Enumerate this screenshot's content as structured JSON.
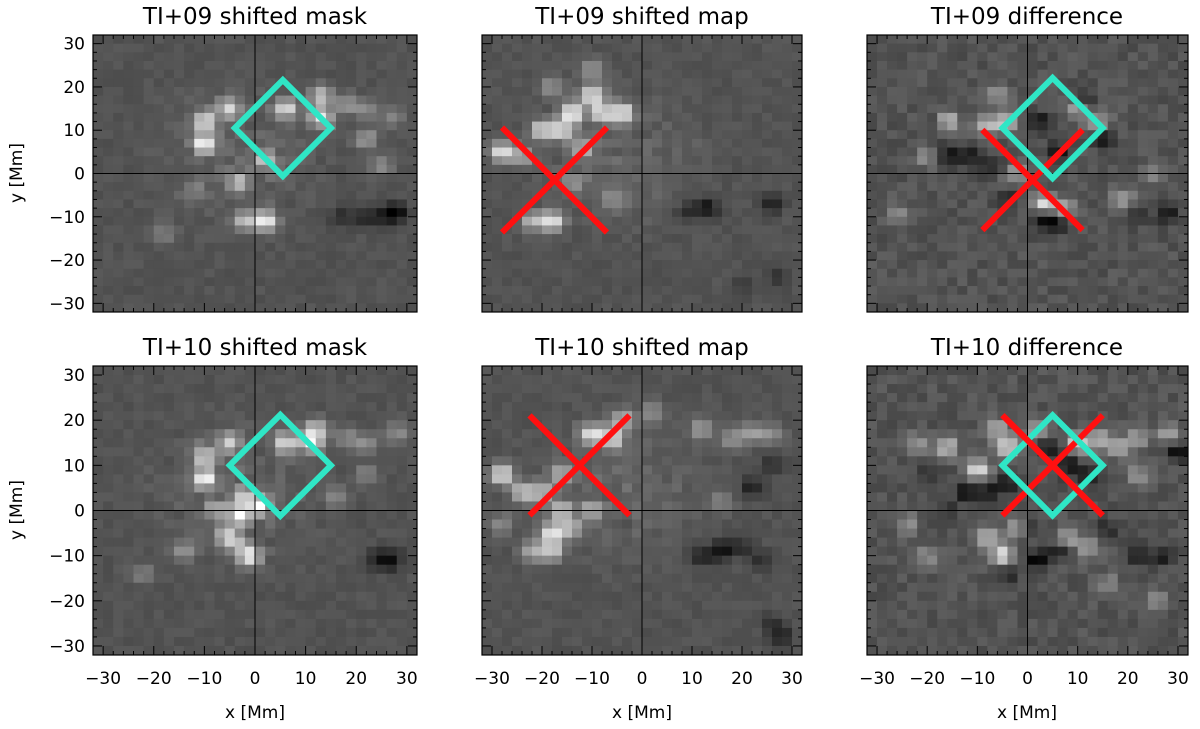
{
  "colors": {
    "diamond": "#2fe6c6",
    "cross": "#ff1010",
    "axis": "#000000",
    "background": "#ffffff"
  },
  "axes": {
    "xlabel": "x [Mm]",
    "ylabel": "y [Mm]",
    "xlim": [
      -32,
      32
    ],
    "ylim": [
      -32,
      32
    ],
    "xticks": [
      "−30",
      "−20",
      "−10",
      "0",
      "10",
      "20",
      "30"
    ],
    "yticks": [
      "30",
      "20",
      "10",
      "0",
      "−10",
      "−20",
      "−30"
    ]
  },
  "chart_data": [
    {
      "type": "heatmap",
      "panel": "mask",
      "title": "TI+09 shifted mask",
      "xlabel": "",
      "ylabel": "y [Mm]",
      "xlim": [
        -32,
        32
      ],
      "ylim": [
        -32,
        32
      ],
      "crosshair": [
        0,
        0
      ],
      "diamond": {
        "center": [
          5.5,
          10.5
        ],
        "half_width": 9.5
      },
      "cross": null,
      "bright_spots": [
        [
          -10,
          7,
          0.95
        ],
        [
          -10,
          12,
          0.8
        ],
        [
          -5,
          15,
          0.75
        ],
        [
          6,
          15,
          0.8
        ],
        [
          13,
          13,
          0.85
        ],
        [
          13,
          18,
          0.7
        ],
        [
          -3,
          -2,
          0.55
        ],
        [
          2,
          3,
          0.55
        ],
        [
          2,
          -11,
          0.95
        ],
        [
          -2,
          -11,
          0.6
        ],
        [
          -12,
          -4,
          0.3
        ],
        [
          -18,
          -14,
          0.3
        ],
        [
          18,
          16,
          0.4
        ],
        [
          22,
          15,
          0.35
        ],
        [
          22,
          8,
          0.45
        ],
        [
          25,
          2,
          0.35
        ],
        [
          27,
          13,
          0.3
        ]
      ],
      "dark_spots": [
        [
          28,
          -9,
          0.8
        ],
        [
          26,
          -10,
          0.6
        ],
        [
          22,
          -10,
          0.6
        ],
        [
          17,
          -10,
          0.5
        ]
      ]
    },
    {
      "type": "heatmap",
      "panel": "map",
      "title": "TI+09 shifted map",
      "xlabel": "",
      "ylabel": "",
      "xlim": [
        -32,
        32
      ],
      "ylim": [
        -32,
        32
      ],
      "crosshair": [
        0,
        0
      ],
      "diamond": null,
      "cross": {
        "center": [
          -17.5,
          -1.5
        ],
        "half_width": 10.5
      },
      "bright_spots": [
        [
          -28,
          5,
          0.9
        ],
        [
          -24,
          4,
          0.55
        ],
        [
          -20,
          10,
          0.8
        ],
        [
          -16,
          10,
          0.8
        ],
        [
          -14,
          14,
          0.95
        ],
        [
          -10,
          18,
          0.85
        ],
        [
          -8,
          14,
          0.8
        ],
        [
          -4,
          14,
          0.85
        ],
        [
          -12,
          6,
          0.55
        ],
        [
          -14,
          -2,
          0.45
        ],
        [
          -18,
          -11,
          0.9
        ],
        [
          -22,
          -11,
          0.6
        ],
        [
          -6,
          -6,
          0.35
        ],
        [
          -10,
          24,
          0.4
        ],
        [
          -18,
          20,
          0.4
        ]
      ],
      "dark_spots": [
        [
          13,
          -8,
          0.8
        ],
        [
          9,
          -9,
          0.45
        ],
        [
          26,
          -7,
          0.6
        ],
        [
          27,
          -24,
          0.45
        ],
        [
          20,
          -26,
          0.3
        ]
      ]
    },
    {
      "type": "heatmap",
      "panel": "difference",
      "title": "TI+09 difference",
      "xlabel": "",
      "ylabel": "",
      "xlim": [
        -32,
        32
      ],
      "ylim": [
        -32,
        32
      ],
      "crosshair": [
        0,
        0
      ],
      "diamond": {
        "center": [
          5,
          10.5
        ],
        "half_width": 10
      },
      "cross": {
        "center": [
          1,
          -1.5
        ],
        "half_width": 10
      },
      "bright_spots": [
        [
          -16,
          12,
          0.75
        ],
        [
          -8,
          11,
          0.6
        ],
        [
          -4,
          12,
          0.75
        ],
        [
          -2,
          0,
          0.45
        ],
        [
          3,
          -7,
          0.8
        ],
        [
          7,
          -8,
          0.6
        ],
        [
          10,
          15,
          0.55
        ],
        [
          14,
          12,
          0.5
        ],
        [
          -20,
          4,
          0.4
        ],
        [
          19,
          -6,
          0.45
        ],
        [
          -26,
          -9,
          0.3
        ],
        [
          25,
          0,
          0.35
        ],
        [
          -6,
          18,
          0.45
        ]
      ],
      "dark_spots": [
        [
          -16,
          4,
          0.8
        ],
        [
          -12,
          4,
          0.7
        ],
        [
          -8,
          2,
          0.6
        ],
        [
          2,
          12,
          0.8
        ],
        [
          6,
          5,
          0.8
        ],
        [
          15,
          8,
          0.7
        ],
        [
          11,
          17,
          0.6
        ],
        [
          3,
          -11,
          0.9
        ],
        [
          6,
          -11,
          0.8
        ],
        [
          28,
          -9,
          0.85
        ],
        [
          22,
          -10,
          0.5
        ],
        [
          -4,
          -6,
          0.5
        ],
        [
          -18,
          11,
          0.5
        ]
      ]
    },
    {
      "type": "heatmap",
      "panel": "mask",
      "title": "TI+10 shifted mask",
      "xlabel": "x [Mm]",
      "ylabel": "y [Mm]",
      "xlim": [
        -32,
        32
      ],
      "ylim": [
        -32,
        32
      ],
      "crosshair": [
        0,
        0
      ],
      "diamond": {
        "center": [
          5,
          10
        ],
        "half_width": 10
      },
      "cross": null,
      "bright_spots": [
        [
          -10,
          7,
          0.95
        ],
        [
          -10,
          12,
          0.75
        ],
        [
          -5,
          15,
          0.7
        ],
        [
          6,
          15,
          0.8
        ],
        [
          11,
          15,
          0.85
        ],
        [
          12,
          18,
          0.7
        ],
        [
          -3,
          -1,
          0.9
        ],
        [
          1,
          1,
          0.85
        ],
        [
          -2,
          3,
          0.6
        ],
        [
          -4,
          -7,
          0.55
        ],
        [
          -1,
          -10,
          0.95
        ],
        [
          -6,
          -5,
          0.5
        ],
        [
          -8,
          0,
          0.4
        ],
        [
          -14,
          -9,
          0.35
        ],
        [
          18,
          16,
          0.35
        ],
        [
          22,
          15,
          0.35
        ],
        [
          28,
          17,
          0.35
        ],
        [
          22,
          8,
          0.3
        ],
        [
          16,
          3,
          0.3
        ],
        [
          -22,
          -14,
          0.3
        ]
      ],
      "dark_spots": [
        [
          27,
          -11,
          0.8
        ],
        [
          24,
          -11,
          0.55
        ]
      ]
    },
    {
      "type": "heatmap",
      "panel": "map",
      "title": "TI+10 shifted map",
      "xlabel": "x [Mm]",
      "ylabel": "",
      "xlim": [
        -32,
        32
      ],
      "ylim": [
        -32,
        32
      ],
      "crosshair": [
        0,
        0
      ],
      "diamond": null,
      "cross": {
        "center": [
          -12.5,
          10
        ],
        "half_width": 10
      },
      "bright_spots": [
        [
          -28,
          8,
          0.9
        ],
        [
          -24,
          4,
          0.65
        ],
        [
          -20,
          4,
          0.6
        ],
        [
          -16,
          8,
          0.6
        ],
        [
          -10,
          17,
          0.85
        ],
        [
          -6,
          16,
          0.75
        ],
        [
          -4,
          20,
          0.6
        ],
        [
          -18,
          -5,
          0.9
        ],
        [
          -16,
          0,
          0.7
        ],
        [
          -14,
          -4,
          0.55
        ],
        [
          -18,
          -9,
          0.7
        ],
        [
          -22,
          -9,
          0.55
        ],
        [
          -10,
          0,
          0.45
        ],
        [
          2,
          22,
          0.35
        ],
        [
          12,
          18,
          0.45
        ],
        [
          18,
          16,
          0.4
        ],
        [
          22,
          17,
          0.45
        ],
        [
          26,
          17,
          0.35
        ],
        [
          -28,
          -3,
          0.35
        ],
        [
          16,
          2,
          0.3
        ]
      ],
      "dark_spots": [
        [
          16,
          -9,
          0.8
        ],
        [
          12,
          -10,
          0.6
        ],
        [
          24,
          -11,
          0.45
        ],
        [
          20,
          -8,
          0.45
        ],
        [
          22,
          5,
          0.6
        ],
        [
          26,
          10,
          0.45
        ],
        [
          28,
          -28,
          0.6
        ],
        [
          26,
          -25,
          0.35
        ]
      ]
    },
    {
      "type": "heatmap",
      "panel": "difference",
      "title": "TI+10 difference",
      "xlabel": "x [Mm]",
      "ylabel": "",
      "xlim": [
        -32,
        32
      ],
      "ylim": [
        -32,
        32
      ],
      "crosshair": [
        0,
        0
      ],
      "diamond": {
        "center": [
          5,
          10
        ],
        "half_width": 10
      },
      "cross": {
        "center": [
          5,
          10
        ],
        "half_width": 10
      },
      "bright_spots": [
        [
          -10,
          9,
          0.85
        ],
        [
          -16,
          14,
          0.7
        ],
        [
          -4,
          14,
          0.8
        ],
        [
          -6,
          18,
          0.55
        ],
        [
          10,
          15,
          0.75
        ],
        [
          14,
          16,
          0.55
        ],
        [
          2,
          18,
          0.55
        ],
        [
          -5,
          -10,
          0.85
        ],
        [
          -8,
          -6,
          0.6
        ],
        [
          -2,
          -4,
          0.55
        ],
        [
          8,
          -6,
          0.45
        ],
        [
          12,
          -8,
          0.45
        ],
        [
          18,
          14,
          0.5
        ],
        [
          22,
          16,
          0.45
        ],
        [
          28,
          17,
          0.5
        ],
        [
          22,
          8,
          0.4
        ],
        [
          -22,
          15,
          0.4
        ],
        [
          -24,
          -3,
          0.35
        ],
        [
          -20,
          -10,
          0.35
        ],
        [
          16,
          -16,
          0.3
        ],
        [
          26,
          -20,
          0.35
        ]
      ],
      "dark_spots": [
        [
          -12,
          4,
          0.9
        ],
        [
          -8,
          4,
          0.75
        ],
        [
          -4,
          6,
          0.7
        ],
        [
          4,
          14,
          0.8
        ],
        [
          8,
          10,
          0.75
        ],
        [
          12,
          8,
          0.6
        ],
        [
          0,
          -4,
          0.65
        ],
        [
          2,
          -11,
          0.95
        ],
        [
          6,
          -9,
          0.6
        ],
        [
          -4,
          -14,
          0.55
        ],
        [
          22,
          -10,
          0.55
        ],
        [
          27,
          -10,
          0.7
        ],
        [
          30,
          13,
          0.85
        ],
        [
          -16,
          0,
          0.45
        ],
        [
          -20,
          8,
          0.35
        ],
        [
          16,
          -4,
          0.45
        ]
      ]
    }
  ]
}
